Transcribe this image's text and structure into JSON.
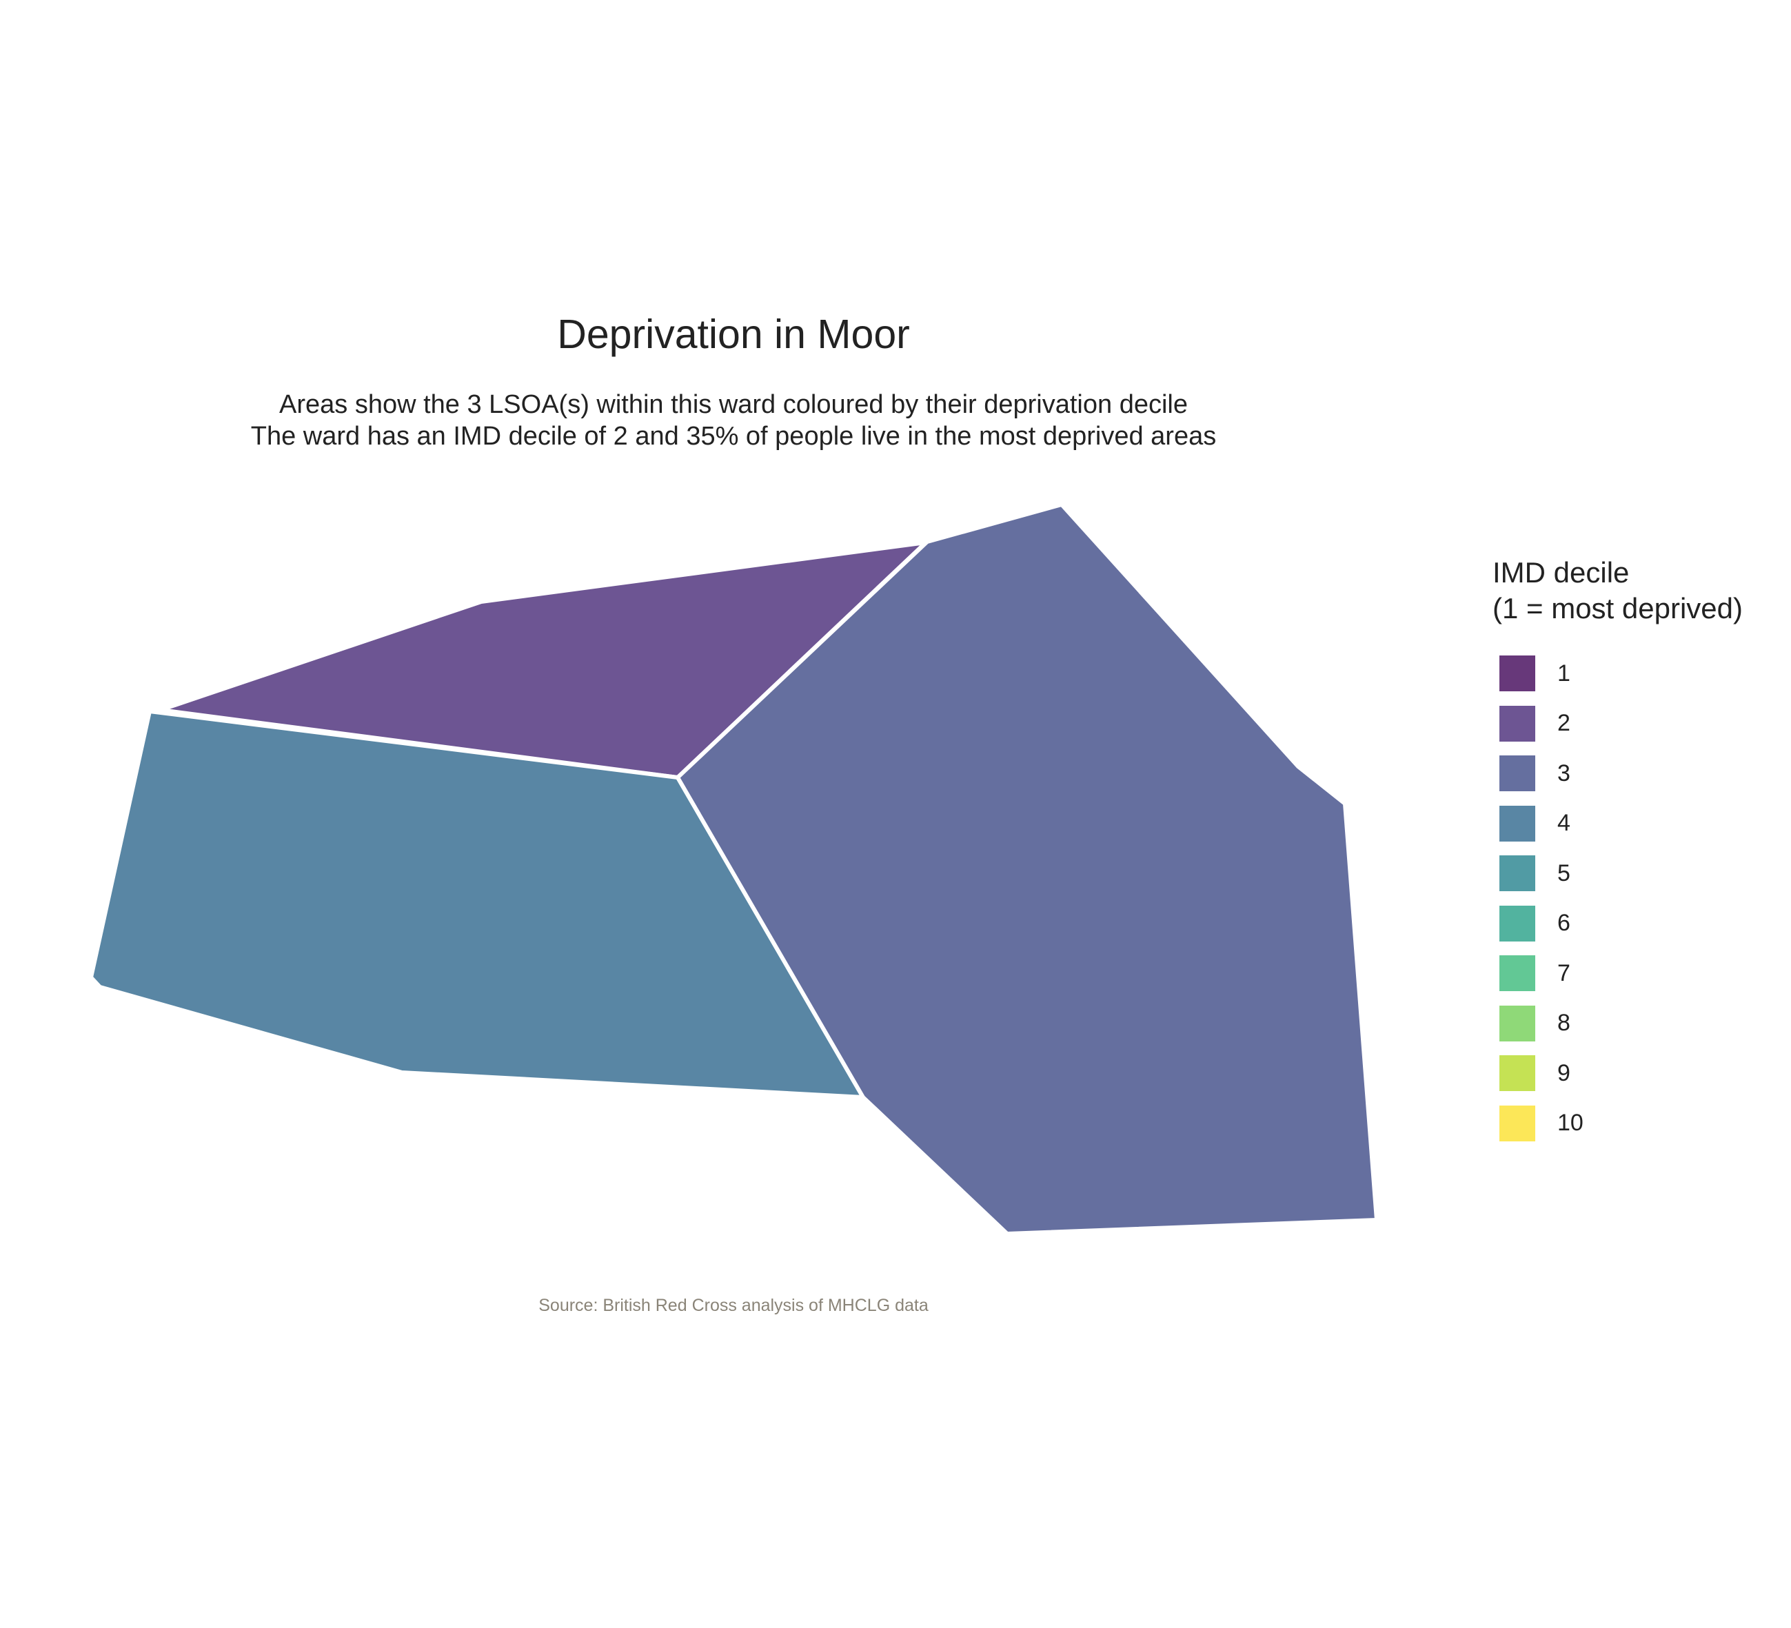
{
  "chart_data": {
    "type": "choropleth",
    "title": "Deprivation in Moor",
    "subtitle_lines": [
      "Areas show the 3 LSOA(s) within this ward coloured by their deprivation decile",
      "The ward has an IMD decile of 2 and 35% of people live in the most deprived areas"
    ],
    "caption": "Source: British Red Cross analysis of MHCLG data",
    "areas": [
      {
        "decile": 2,
        "color": "#6d5593"
      },
      {
        "decile": 4,
        "color": "#5986a4"
      },
      {
        "decile": 3,
        "color": "#656f9f"
      }
    ],
    "legend": {
      "title_lines": [
        "IMD decile",
        "(1 = most deprived)"
      ],
      "items": [
        {
          "label": "1",
          "color": "#67387a"
        },
        {
          "label": "2",
          "color": "#6d5593"
        },
        {
          "label": "3",
          "color": "#656f9f"
        },
        {
          "label": "4",
          "color": "#5986a4"
        },
        {
          "label": "5",
          "color": "#519ba4"
        },
        {
          "label": "6",
          "color": "#52b39f"
        },
        {
          "label": "7",
          "color": "#62c895"
        },
        {
          "label": "8",
          "color": "#8fd978"
        },
        {
          "label": "9",
          "color": "#c5e254"
        },
        {
          "label": "10",
          "color": "#fce758"
        }
      ]
    }
  }
}
